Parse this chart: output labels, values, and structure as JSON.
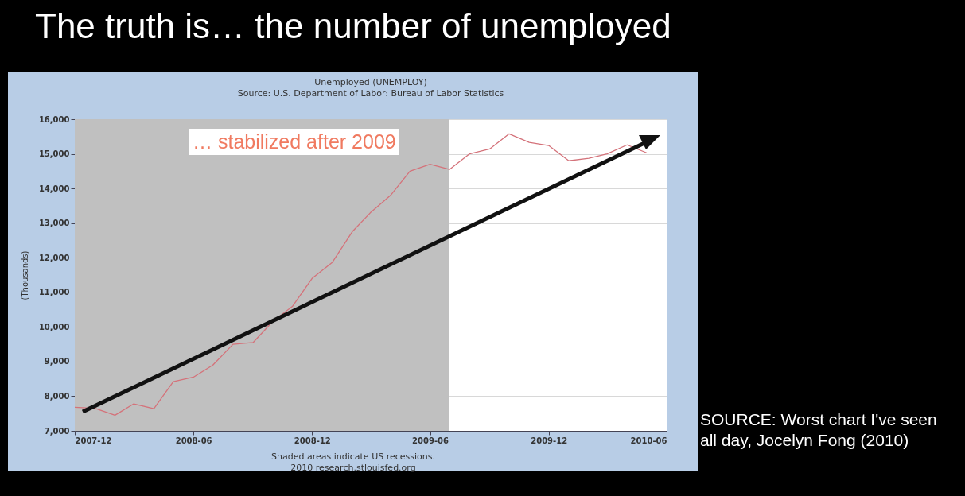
{
  "chart_data": {
    "type": "line",
    "title": "The truth is… the number of unemployed",
    "subtitle": "Unemployed (UNEMPLOY)",
    "ylabel": "(Thousands)",
    "annotations": [
      "Source: U.S. Department of Labor: Bureau of Labor Statistics",
      "… stabilized after 2009",
      "2010 research.stlouisfed.org",
      "SOURCE: Worst chart I've seen all day, Jocelyn Fong (2010)"
    ],
    "x": [
      "2007-12",
      "2008-01",
      "2008-02",
      "2008-03",
      "2008-04",
      "2008-05",
      "2008-06",
      "2008-07",
      "2008-08",
      "2008-09",
      "2008-10",
      "2008-11",
      "2008-12",
      "2009-01",
      "2009-02",
      "2009-03",
      "2009-04",
      "2009-05",
      "2009-06",
      "2009-07",
      "2009-08",
      "2009-09",
      "2009-10",
      "2009-11",
      "2009-12",
      "2010-01",
      "2010-02",
      "2010-03",
      "2010-04",
      "2010-05"
    ],
    "series": [
      {
        "color": "#d4727a",
        "values": [
          7680,
          7650,
          7450,
          7780,
          7640,
          8420,
          8550,
          8900,
          9500,
          9550,
          10150,
          10600,
          11400,
          11860,
          12750,
          13300,
          13800,
          14500,
          14700,
          14550,
          15000,
          15140,
          15580,
          15330,
          15240,
          14800,
          14870,
          15000,
          15260,
          15030
        ]
      }
    ],
    "xlim": [
      "2007-12",
      "2010-06"
    ],
    "xticks": [
      {
        "value": "2007-12",
        "label": "2007-12"
      },
      {
        "value": "2008-06",
        "label": "2008-06"
      },
      {
        "value": "2008-12",
        "label": "2008-12"
      },
      {
        "value": "2009-06",
        "label": "2009-06"
      },
      {
        "value": "2009-12",
        "label": "2009-12"
      },
      {
        "value": "2010-06",
        "label": "2010-06"
      }
    ],
    "ylim": [
      7000,
      16000
    ],
    "yticks": [
      {
        "value": 7000,
        "label": "7,000"
      },
      {
        "value": 8000,
        "label": "8,000"
      },
      {
        "value": 9000,
        "label": "9,000"
      },
      {
        "value": 10000,
        "label": "10,000"
      },
      {
        "value": 11000,
        "label": "11,000"
      },
      {
        "value": 12000,
        "label": "12,000"
      },
      {
        "value": 13000,
        "label": "13,000"
      },
      {
        "value": 14000,
        "label": "14,000"
      },
      {
        "value": 15000,
        "label": "15,000"
      },
      {
        "value": 16000,
        "label": "16,000"
      }
    ],
    "bands": [
      {
        "axis": "x",
        "from": "2007-12",
        "to": "2009-07",
        "label": "Shaded areas indicate US recessions.",
        "color": "#c0c0c0"
      }
    ],
    "grid": "y",
    "legend": false,
    "marker": "none",
    "line_style": "solid"
  }
}
